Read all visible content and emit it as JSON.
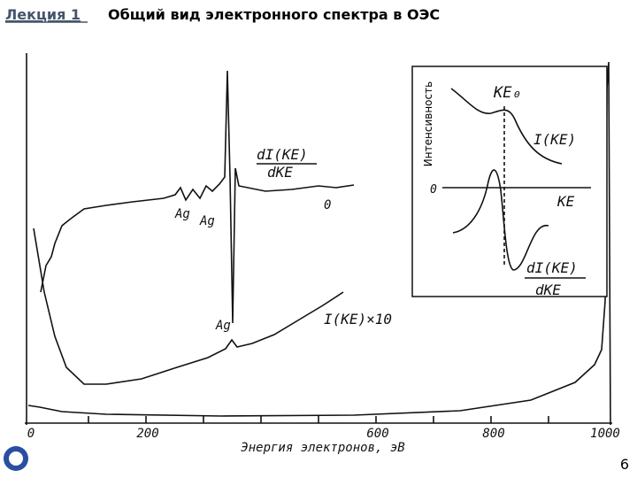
{
  "header": {
    "lecture": "Лекция 1",
    "title": "Общий вид электронного спектра в ОЭС"
  },
  "figure": {
    "x_axis": {
      "ticks": [
        "0",
        "200",
        "600",
        "800",
        "1000"
      ],
      "label": "Энергия электронов, эВ"
    },
    "labels": {
      "derivative_num": "dI(KE)",
      "derivative_den": "dKE",
      "ag_1": "Ag",
      "ag_2": "Ag",
      "zero": "0",
      "ag_3": "Ag",
      "intensity_x10": "I(KE)×10"
    },
    "inset": {
      "y_label": "Интенсивность",
      "ke0": "KE₀",
      "intensity": "I(KE)",
      "zero": "0",
      "ke": "KE",
      "derivative_num": "dI(KE)",
      "derivative_den": "dKE"
    }
  },
  "page_number": "6"
}
